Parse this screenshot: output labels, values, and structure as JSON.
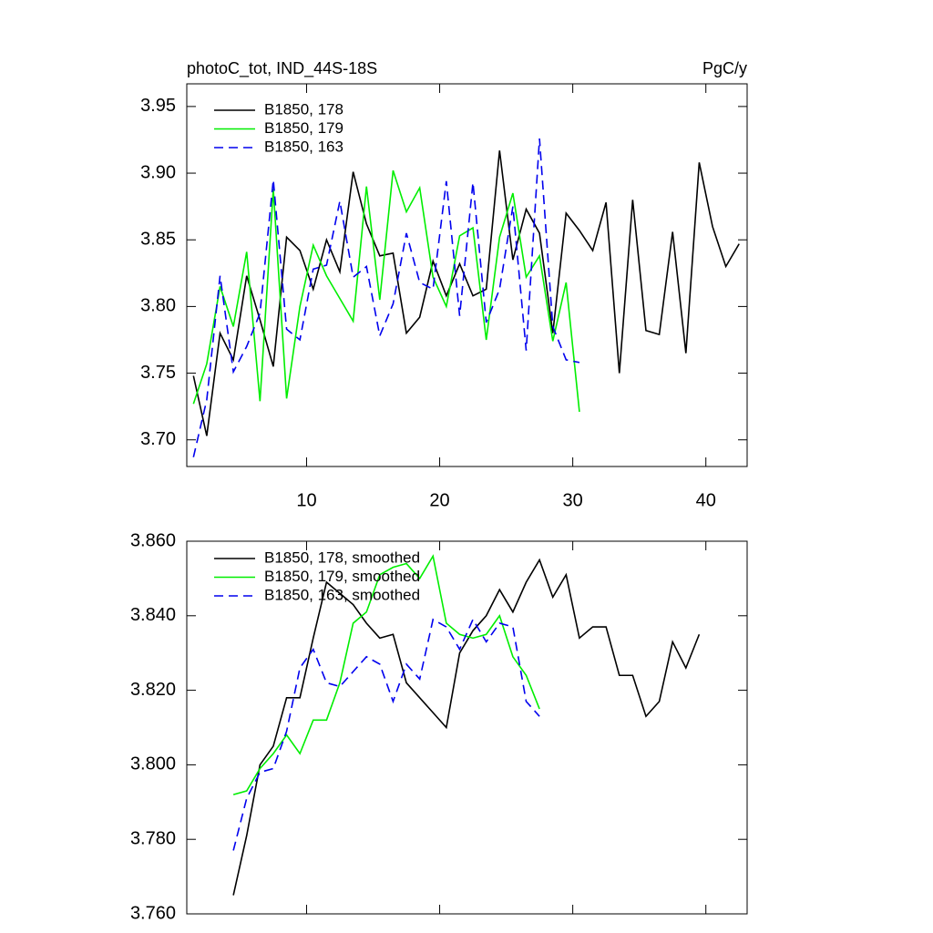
{
  "chart_data": [
    {
      "type": "line",
      "title": "photoC_tot, IND_44S-18S",
      "units": "PgC/y",
      "x": [
        1.5,
        2.5,
        3.5,
        4.5,
        5.5,
        6.5,
        7.5,
        8.5,
        9.5,
        10.5,
        11.5,
        12.5,
        13.5,
        14.5,
        15.5,
        16.5,
        17.5,
        18.5,
        19.5,
        20.5,
        21.5,
        22.5,
        23.5,
        24.5,
        25.5,
        26.5,
        27.5,
        28.5,
        29.5,
        30.5,
        31.5,
        32.5,
        33.5,
        34.5,
        35.5,
        36.5,
        37.5,
        38.5,
        39.5,
        40.5,
        41.5,
        42.5
      ],
      "xlim": [
        1,
        43.1
      ],
      "xticks": [
        10,
        20,
        30,
        40
      ],
      "ylim": [
        3.68,
        3.967
      ],
      "yticks": [
        {
          "value": 3.7,
          "label": "3.70"
        },
        3.75,
        {
          "value": 3.8,
          "label": "3.80"
        },
        3.85,
        {
          "value": 3.9,
          "label": "3.90"
        },
        3.95
      ],
      "series": [
        {
          "name": "B1850, 178",
          "color": "#000000",
          "dashed": false,
          "values": [
            3.748,
            3.703,
            3.78,
            3.76,
            3.823,
            3.79,
            3.755,
            3.852,
            3.842,
            3.813,
            3.85,
            3.826,
            3.901,
            3.862,
            3.838,
            3.84,
            3.78,
            3.792,
            3.834,
            3.808,
            3.832,
            3.808,
            3.813,
            3.917,
            3.835,
            3.873,
            3.855,
            3.78,
            3.87,
            3.857,
            3.842,
            3.878,
            3.75,
            3.88,
            3.782,
            3.779,
            3.856,
            3.765,
            3.908,
            3.86,
            3.83,
            3.847
          ]
        },
        {
          "name": "B1850, 179",
          "color": "#00ee00",
          "dashed": false,
          "values": [
            3.727,
            3.757,
            3.815,
            3.785,
            3.841,
            3.729,
            3.888,
            3.731,
            3.8,
            3.846,
            3.823,
            3.806,
            3.789,
            3.89,
            3.805,
            3.902,
            3.871,
            3.889,
            3.822,
            3.8,
            3.853,
            3.859,
            3.775,
            3.852,
            3.885,
            3.822,
            3.838,
            3.774,
            3.818,
            3.721,
            null,
            null,
            null,
            null,
            null,
            null,
            null,
            null,
            null,
            null,
            null,
            null
          ]
        },
        {
          "name": "B1850, 163",
          "color": "#0000ee",
          "dashed": true,
          "values": [
            3.687,
            3.73,
            3.823,
            3.751,
            3.77,
            3.795,
            3.895,
            3.783,
            3.775,
            3.828,
            3.831,
            3.879,
            3.822,
            3.83,
            3.778,
            3.802,
            3.855,
            3.818,
            3.813,
            3.894,
            3.793,
            3.893,
            3.788,
            3.813,
            3.875,
            3.767,
            3.926,
            3.785,
            3.76,
            3.758,
            null,
            null,
            null,
            null,
            null,
            null,
            null,
            null,
            null,
            null,
            null,
            null
          ]
        }
      ]
    },
    {
      "type": "line",
      "x": [
        4.5,
        5.5,
        6.5,
        7.5,
        8.5,
        9.5,
        10.5,
        11.5,
        12.5,
        13.5,
        14.5,
        15.5,
        16.5,
        17.5,
        18.5,
        19.5,
        20.5,
        21.5,
        22.5,
        23.5,
        24.5,
        25.5,
        26.5,
        27.5,
        28.5,
        29.5,
        30.5,
        31.5,
        32.5,
        33.5,
        34.5,
        35.5,
        36.5,
        37.5,
        38.5,
        39.5
      ],
      "xlim": [
        1,
        43.1
      ],
      "xticks": [
        10,
        20,
        30,
        40
      ],
      "ylim": [
        3.76,
        3.86
      ],
      "yticks": [
        {
          "value": 3.76,
          "label": "3.760"
        },
        {
          "value": 3.78,
          "label": "3.780"
        },
        {
          "value": 3.8,
          "label": "3.800"
        },
        {
          "value": 3.82,
          "label": "3.820"
        },
        {
          "value": 3.84,
          "label": "3.840"
        },
        {
          "value": 3.86,
          "label": "3.860"
        }
      ],
      "series": [
        {
          "name": "B1850, 178, smoothed",
          "color": "#000000",
          "dashed": false,
          "values": [
            3.765,
            3.781,
            3.8,
            3.805,
            3.818,
            3.818,
            3.834,
            3.849,
            3.846,
            3.843,
            3.838,
            3.834,
            3.835,
            3.822,
            3.818,
            3.814,
            3.81,
            3.83,
            3.836,
            3.84,
            3.847,
            3.841,
            3.849,
            3.855,
            3.845,
            3.851,
            3.834,
            3.837,
            3.837,
            3.824,
            3.824,
            3.813,
            3.817,
            3.833,
            3.826,
            3.835
          ]
        },
        {
          "name": "B1850, 179, smoothed",
          "color": "#00ee00",
          "dashed": false,
          "values": [
            3.792,
            3.793,
            3.799,
            3.803,
            3.808,
            3.803,
            3.812,
            3.812,
            3.822,
            3.838,
            3.841,
            3.851,
            3.853,
            3.854,
            3.85,
            3.856,
            3.838,
            3.835,
            3.834,
            3.835,
            3.84,
            3.829,
            3.824,
            3.815,
            null,
            null,
            null,
            null,
            null,
            null,
            null,
            null,
            null,
            null,
            null,
            null
          ]
        },
        {
          "name": "B1850, 163, smoothed",
          "color": "#0000ee",
          "dashed": true,
          "values": [
            3.777,
            3.791,
            3.798,
            3.799,
            3.809,
            3.826,
            3.831,
            3.822,
            3.821,
            3.825,
            3.829,
            3.827,
            3.817,
            3.827,
            3.823,
            3.839,
            3.837,
            3.831,
            3.839,
            3.833,
            3.838,
            3.837,
            3.817,
            3.813,
            null,
            null,
            null,
            null,
            null,
            null,
            null,
            null,
            null,
            null,
            null,
            null
          ]
        }
      ]
    }
  ]
}
